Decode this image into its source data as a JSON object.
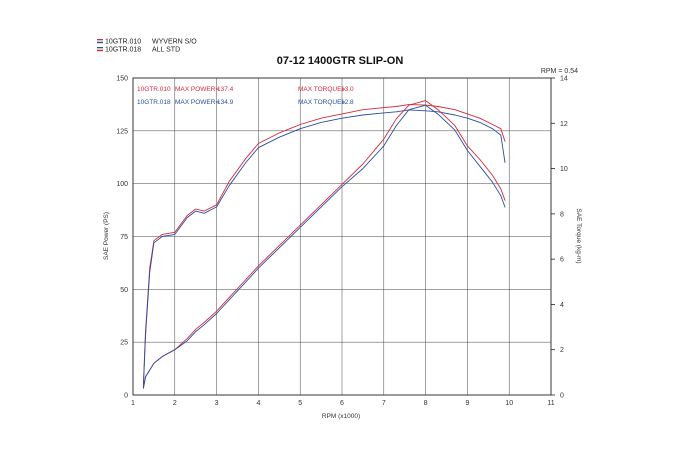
{
  "chart_data": {
    "type": "line",
    "title": "07-12 1400GTR SLIP-ON",
    "xlabel": "RPM (x1000)",
    "ylabel_left": "SAE Power (PS)",
    "ylabel_right": "SAE Torque (kg-m)",
    "rpm_note": "RPM = 0.54",
    "xlim": [
      1,
      11
    ],
    "ylim_left": [
      0,
      150
    ],
    "ylim_right": [
      0,
      14
    ],
    "x_ticks": [
      "1",
      "2",
      "3",
      "4",
      "5",
      "6",
      "7",
      "8",
      "9",
      "10",
      "11"
    ],
    "y_ticks_left": [
      "0",
      "25",
      "50",
      "75",
      "100",
      "125",
      "150"
    ],
    "y_ticks_right": [
      "0",
      "2",
      "4",
      "6",
      "8",
      "10",
      "12",
      "14"
    ],
    "grid": true,
    "legend": [
      {
        "id": "10GTR.010",
        "label": "WYVERN S/O",
        "color": "#d42a3a",
        "flag": "red"
      },
      {
        "id": "10GTR.018",
        "label": "ALL STD",
        "color": "#2a4fa0",
        "flag": "blue"
      }
    ],
    "annotations": [
      {
        "run": "10GTR.010",
        "power_label": "MAX POWER=",
        "power_value": "137.4",
        "torque_label": "MAX TORQUE=",
        "torque_value": "13.0",
        "color": "#d42a3a"
      },
      {
        "run": "10GTR.018",
        "power_label": "MAX POWER=",
        "power_value": "134.9",
        "torque_label": "MAX TORQUE=",
        "torque_value": "12.8",
        "color": "#2a4fa0"
      }
    ],
    "series": [
      {
        "name": "10GTR.010 power",
        "axis": "left",
        "color": "#d42a3a",
        "x": [
          1.25,
          1.3,
          1.4,
          1.5,
          1.7,
          2.0,
          2.3,
          2.5,
          2.7,
          3.0,
          3.3,
          3.7,
          4.0,
          4.5,
          5.0,
          5.5,
          6.0,
          6.5,
          7.0,
          7.3,
          7.6,
          8.0,
          8.3,
          8.7,
          9.0,
          9.3,
          9.6,
          9.8,
          9.9
        ],
        "y": [
          5,
          30,
          60,
          73,
          76,
          77,
          85,
          88,
          87,
          90,
          101,
          112,
          119,
          124,
          128,
          131,
          133,
          135,
          136,
          136.5,
          137.4,
          137.2,
          136.5,
          135,
          133,
          131,
          128,
          126,
          120
        ]
      },
      {
        "name": "10GTR.018 power",
        "axis": "left",
        "color": "#2a4fa0",
        "x": [
          1.25,
          1.3,
          1.4,
          1.5,
          1.7,
          2.0,
          2.3,
          2.5,
          2.7,
          3.0,
          3.3,
          3.7,
          4.0,
          4.5,
          5.0,
          5.5,
          6.0,
          6.5,
          7.0,
          7.3,
          7.6,
          8.0,
          8.3,
          8.7,
          9.0,
          9.3,
          9.6,
          9.8,
          9.9
        ],
        "y": [
          4,
          28,
          58,
          72,
          75,
          76,
          84,
          87,
          86,
          89,
          99,
          110,
          117,
          122,
          126,
          129,
          131,
          132.5,
          133.5,
          134,
          134.9,
          134.5,
          134,
          132.5,
          131,
          129,
          126,
          123,
          110
        ]
      },
      {
        "name": "10GTR.010 torque",
        "axis": "right",
        "color": "#d42a3a",
        "x": [
          1.25,
          1.3,
          1.5,
          1.7,
          2.0,
          2.3,
          2.5,
          2.7,
          3.0,
          3.3,
          3.7,
          4.0,
          4.5,
          5.0,
          5.5,
          6.0,
          6.5,
          7.0,
          7.3,
          7.6,
          8.0,
          8.3,
          8.7,
          9.0,
          9.3,
          9.6,
          9.8,
          9.9
        ],
        "y": [
          0.3,
          0.8,
          1.4,
          1.7,
          2.0,
          2.5,
          2.9,
          3.2,
          3.7,
          4.3,
          5.1,
          5.7,
          6.6,
          7.5,
          8.4,
          9.3,
          10.2,
          11.3,
          12.2,
          12.8,
          13.0,
          12.6,
          11.9,
          11.0,
          10.4,
          9.7,
          9.1,
          8.6
        ]
      },
      {
        "name": "10GTR.018 torque",
        "axis": "right",
        "color": "#2a4fa0",
        "x": [
          1.25,
          1.3,
          1.5,
          1.7,
          2.0,
          2.3,
          2.5,
          2.7,
          3.0,
          3.3,
          3.7,
          4.0,
          4.5,
          5.0,
          5.5,
          6.0,
          6.5,
          7.0,
          7.3,
          7.6,
          8.0,
          8.3,
          8.7,
          9.0,
          9.3,
          9.6,
          9.8,
          9.9
        ],
        "y": [
          0.3,
          0.8,
          1.4,
          1.7,
          2.0,
          2.4,
          2.8,
          3.1,
          3.6,
          4.2,
          5.0,
          5.6,
          6.5,
          7.4,
          8.3,
          9.2,
          10.0,
          11.0,
          11.9,
          12.6,
          12.8,
          12.4,
          11.7,
          10.8,
          10.1,
          9.4,
          8.8,
          8.3
        ]
      }
    ]
  }
}
